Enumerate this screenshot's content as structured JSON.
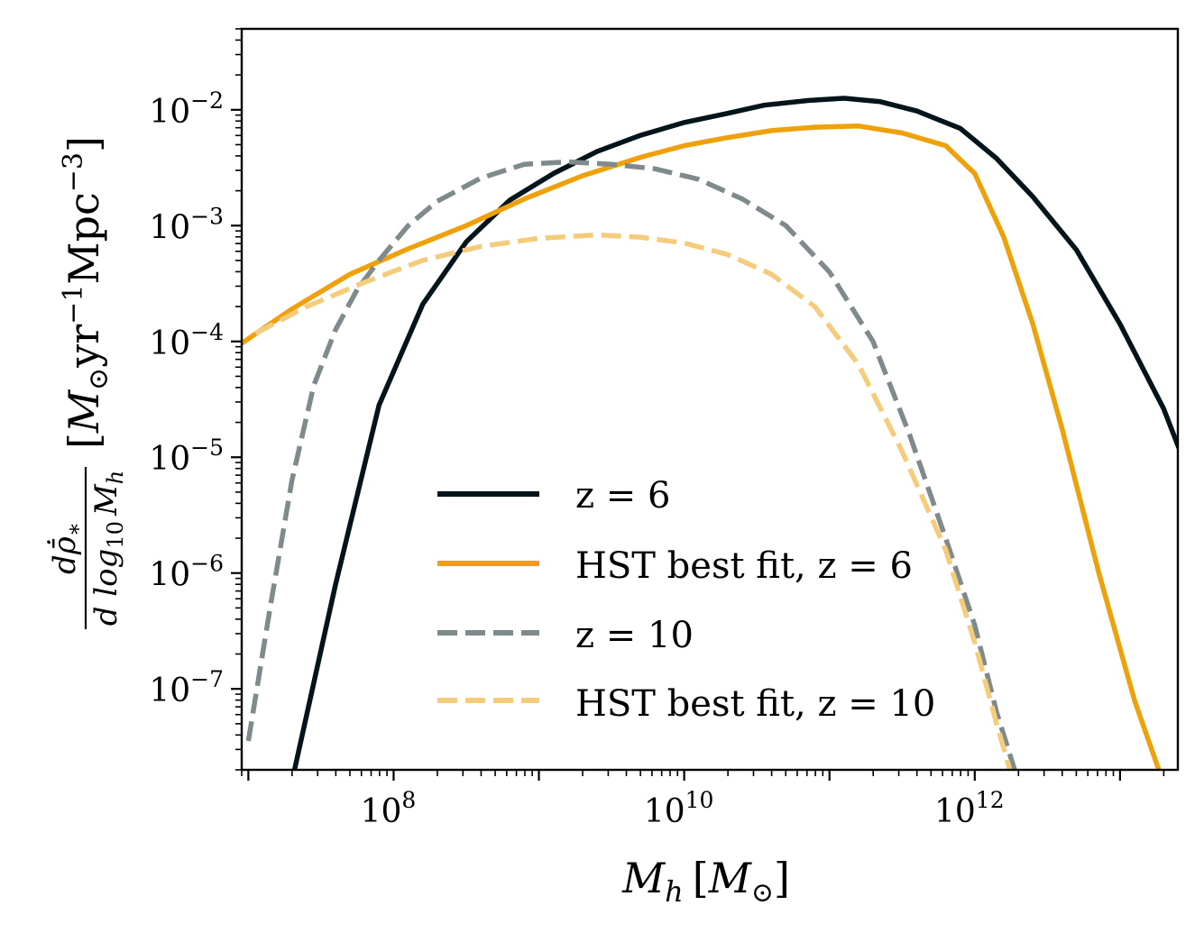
{
  "chart_data": {
    "type": "line",
    "xscale": "log",
    "yscale": "log",
    "xlim": [
      9000000,
      25000000000000
    ],
    "ylim": [
      2e-08,
      0.05
    ],
    "xticks": [
      {
        "value": 100000000,
        "base": "10",
        "exp": "8"
      },
      {
        "value": 10000000000,
        "base": "10",
        "exp": "10"
      },
      {
        "value": 1000000000000,
        "base": "10",
        "exp": "12"
      }
    ],
    "yticks": [
      {
        "value": 0.01,
        "base": "10",
        "exp": "−2"
      },
      {
        "value": 0.001,
        "base": "10",
        "exp": "−3"
      },
      {
        "value": 0.0001,
        "base": "10",
        "exp": "−4"
      },
      {
        "value": 1e-05,
        "base": "10",
        "exp": "−5"
      },
      {
        "value": 1e-06,
        "base": "10",
        "exp": "−6"
      },
      {
        "value": 1e-07,
        "base": "10",
        "exp": "−7"
      }
    ],
    "xlabel": {
      "symbol": "M",
      "sub": "h",
      "unit_open": "[",
      "unit_symbol": "M",
      "unit_sub": "⊙",
      "unit_close": "]"
    },
    "ylabel": {
      "numerator": "dρ̄̇",
      "numerator_sub": "∗",
      "denominator": "d log",
      "denominator_sub": "10",
      "denominator_var": "M",
      "denominator_var_sub": "h",
      "unit_open": "[",
      "unit_M": "M",
      "unit_M_sub": "⊙",
      "unit_yr": "yr",
      "unit_yr_exp": "−1",
      "unit_mpc": "Mpc",
      "unit_mpc_exp": "−3",
      "unit_close": "]"
    },
    "legend_position": "lower-center",
    "series": [
      {
        "name": "z = 6",
        "color": "#03141a",
        "dash": "solid",
        "opacity": 1,
        "log10_x": [
          7.3,
          7.6,
          7.9,
          8.2,
          8.5,
          8.8,
          9.1,
          9.4,
          9.7,
          10.0,
          10.3,
          10.55,
          10.85,
          11.1,
          11.35,
          11.6,
          11.9,
          12.15,
          12.4,
          12.7,
          13.0,
          13.3,
          13.6
        ],
        "log10_y": [
          -7.8,
          -6.1,
          -4.55,
          -3.68,
          -3.14,
          -2.78,
          -2.55,
          -2.36,
          -2.22,
          -2.11,
          -2.03,
          -1.96,
          -1.92,
          -1.9,
          -1.93,
          -2.01,
          -2.16,
          -2.42,
          -2.75,
          -3.21,
          -3.85,
          -4.58,
          -5.55
        ],
        "clip_start": [
          7.3,
          -7.7
        ]
      },
      {
        "name": "HST best fit, z = 6",
        "color": "#eea10a",
        "dash": "solid",
        "opacity": 1,
        "log10_x": [
          6.95,
          7.3,
          7.7,
          8.1,
          8.5,
          8.9,
          9.3,
          9.7,
          10.0,
          10.3,
          10.6,
          10.9,
          11.2,
          11.5,
          11.8,
          12.0,
          12.2,
          12.4,
          12.6,
          12.85,
          13.1,
          13.35
        ],
        "log10_y": [
          -4.02,
          -3.72,
          -3.42,
          -3.2,
          -3.0,
          -2.77,
          -2.57,
          -2.41,
          -2.31,
          -2.24,
          -2.18,
          -2.15,
          -2.14,
          -2.2,
          -2.31,
          -2.55,
          -3.1,
          -3.85,
          -4.75,
          -5.98,
          -7.1,
          -8.0
        ],
        "clip_start": [
          6.95,
          -4.02
        ]
      },
      {
        "name": "z = 10",
        "color": "#7f8a8c",
        "dash": "dashed",
        "opacity": 1,
        "log10_x": [
          7.0,
          7.15,
          7.3,
          7.45,
          7.6,
          7.75,
          7.9,
          8.1,
          8.3,
          8.6,
          8.9,
          9.2,
          9.5,
          9.8,
          10.1,
          10.4,
          10.7,
          11.0,
          11.3,
          11.55,
          11.8,
          12.0,
          12.15,
          12.3,
          12.4
        ],
        "log10_y": [
          -7.45,
          -6.3,
          -5.2,
          -4.38,
          -3.9,
          -3.55,
          -3.3,
          -3.0,
          -2.79,
          -2.59,
          -2.47,
          -2.45,
          -2.47,
          -2.51,
          -2.6,
          -2.77,
          -3.0,
          -3.4,
          -4.0,
          -4.8,
          -5.7,
          -6.45,
          -7.2,
          -7.8,
          -8.3
        ],
        "clip_start": [
          7.0,
          -7.45
        ]
      },
      {
        "name": "HST best fit, z = 10",
        "color": "#f5cb7c",
        "dash": "dashed",
        "opacity": 1,
        "log10_x": [
          7.05,
          7.4,
          7.8,
          8.2,
          8.6,
          9.0,
          9.4,
          9.7,
          10.0,
          10.3,
          10.6,
          10.9,
          11.2,
          11.5,
          11.8,
          12.0,
          12.15,
          12.3,
          12.4
        ],
        "log10_y": [
          -3.93,
          -3.7,
          -3.49,
          -3.3,
          -3.18,
          -3.11,
          -3.08,
          -3.1,
          -3.15,
          -3.25,
          -3.42,
          -3.7,
          -4.2,
          -4.95,
          -5.8,
          -6.6,
          -7.3,
          -7.95,
          -8.4
        ],
        "clip_start": [
          7.05,
          -3.93
        ]
      }
    ]
  }
}
